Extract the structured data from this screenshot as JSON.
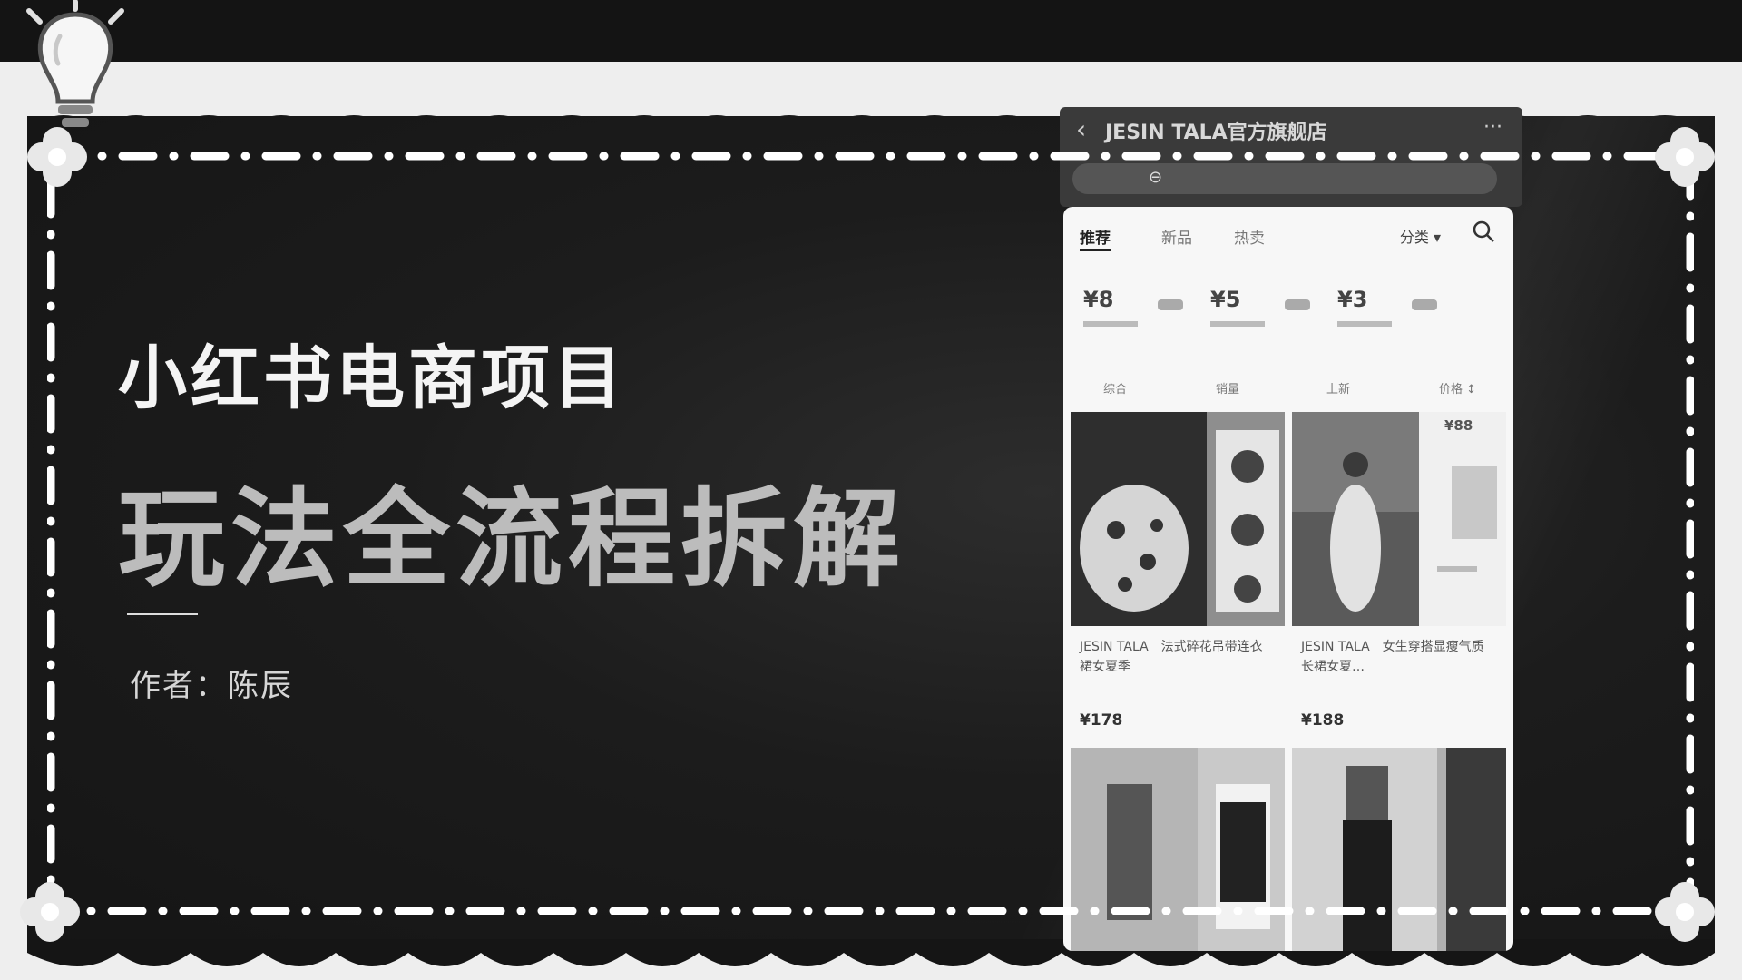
{
  "slide": {
    "title_line1": "小红书电商项目",
    "title_line2": "玩法全流程拆解",
    "author": "作者：陈辰"
  },
  "phone": {
    "store_title": "JESIN TALA官方旗舰店",
    "tabs": [
      "推荐",
      "新品",
      "热卖"
    ],
    "category_label": "分类 ▾",
    "coupons": [
      "¥8",
      "¥5",
      "¥3"
    ],
    "sort_options": [
      "综合",
      "销量",
      "上新",
      "价格 ↕"
    ],
    "products": [
      {
        "title": "JESIN TALA　法式碎花吊带连衣裙女夏季",
        "price": "¥178"
      },
      {
        "title": "JESIN TALA　女生穿搭显瘦气质长裙女夏…",
        "price": "¥188"
      }
    ],
    "side_price": "¥88"
  },
  "icons": {
    "bulb": "lightbulb-icon",
    "search": "search-icon",
    "back": "back-arrow-icon",
    "more": "more-icon"
  },
  "colors": {
    "slide_bg": "#1c1c1c",
    "frame_bg": "#eeeeee",
    "title_primary": "#f4f4f4",
    "title_secondary": "#bcbcbc"
  }
}
